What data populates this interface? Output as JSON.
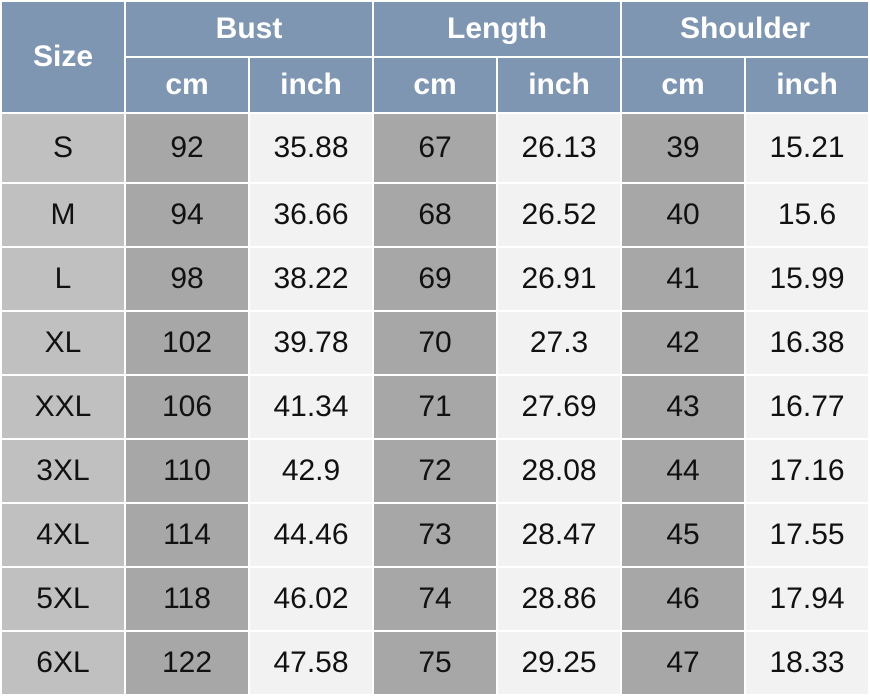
{
  "headers": {
    "size": "Size",
    "groups": [
      "Bust",
      "Length",
      "Shoulder"
    ],
    "units": [
      "cm",
      "inch",
      "cm",
      "inch",
      "cm",
      "inch"
    ]
  },
  "colors": {
    "header": "#7f96b2",
    "size_col": "#c0c0c0",
    "cm_col": "#a7a7a7",
    "inch_col": "#f2f2f2"
  },
  "rows": [
    {
      "size": "S",
      "values": [
        "92",
        "35.88",
        "67",
        "26.13",
        "39",
        "15.21"
      ]
    },
    {
      "size": "M",
      "values": [
        "94",
        "36.66",
        "68",
        "26.52",
        "40",
        "15.6"
      ]
    },
    {
      "size": "L",
      "values": [
        "98",
        "38.22",
        "69",
        "26.91",
        "41",
        "15.99"
      ]
    },
    {
      "size": "XL",
      "values": [
        "102",
        "39.78",
        "70",
        "27.3",
        "42",
        "16.38"
      ]
    },
    {
      "size": "XXL",
      "values": [
        "106",
        "41.34",
        "71",
        "27.69",
        "43",
        "16.77"
      ]
    },
    {
      "size": "3XL",
      "values": [
        "110",
        "42.9",
        "72",
        "28.08",
        "44",
        "17.16"
      ]
    },
    {
      "size": "4XL",
      "values": [
        "114",
        "44.46",
        "73",
        "28.47",
        "45",
        "17.55"
      ]
    },
    {
      "size": "5XL",
      "values": [
        "118",
        "46.02",
        "74",
        "28.86",
        "46",
        "17.94"
      ]
    },
    {
      "size": "6XL",
      "values": [
        "122",
        "47.58",
        "75",
        "29.25",
        "47",
        "18.33"
      ]
    }
  ]
}
